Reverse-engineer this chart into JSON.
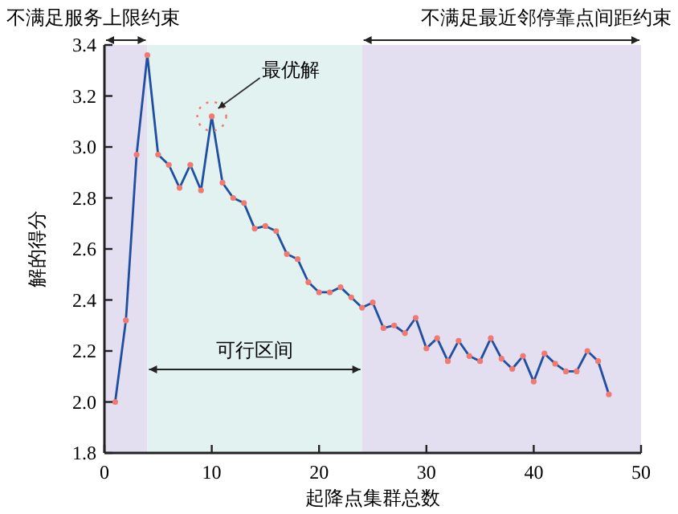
{
  "chart_data": {
    "type": "line",
    "xlabel": "起降点集群总数",
    "ylabel": "解的得分",
    "xlim": [
      0,
      50
    ],
    "ylim": [
      1.8,
      3.4
    ],
    "xticks": [
      0,
      10,
      20,
      30,
      40,
      50
    ],
    "yticks": [
      1.8,
      {
        "value": 2,
        "label": "2.0"
      },
      2.2,
      2.4,
      2.6,
      2.8,
      {
        "value": 3,
        "label": "3.0"
      },
      3.2,
      3.4
    ],
    "marker": "circle",
    "line_style": "solid",
    "series": [
      {
        "color": "#1f4fa0",
        "x": [
          1,
          2,
          3,
          4,
          5,
          6,
          7,
          8,
          9,
          10,
          11,
          12,
          13,
          14,
          15,
          16,
          17,
          18,
          19,
          20,
          21,
          22,
          23,
          24,
          25,
          26,
          27,
          28,
          29,
          30,
          31,
          32,
          33,
          34,
          35,
          36,
          37,
          38,
          39,
          40,
          41,
          42,
          43,
          44,
          45,
          46,
          47
        ],
        "values": [
          2.0,
          2.32,
          2.97,
          3.36,
          2.97,
          2.93,
          2.84,
          2.93,
          2.83,
          3.12,
          2.86,
          2.8,
          2.78,
          2.68,
          2.69,
          2.67,
          2.58,
          2.56,
          2.47,
          2.43,
          2.43,
          2.45,
          2.41,
          2.37,
          2.39,
          2.29,
          2.3,
          2.27,
          2.33,
          2.21,
          2.25,
          2.16,
          2.24,
          2.18,
          2.16,
          2.25,
          2.17,
          2.13,
          2.18,
          2.08,
          2.19,
          2.15,
          2.12,
          2.12,
          2.2,
          2.16,
          2.03
        ]
      }
    ],
    "bands": [
      {
        "axis": "x",
        "from": 0,
        "to": 4,
        "label": "不满足服务上限约束",
        "color": "#e3def0"
      },
      {
        "axis": "x",
        "from": 4,
        "to": 24,
        "label": "可行区间",
        "color": "#e2f2f0"
      },
      {
        "axis": "x",
        "from": 24,
        "to": 50,
        "label": "不满足最近邻停靠点间距约束",
        "color": "#e3def0"
      }
    ],
    "annotations": [
      {
        "text": "最优解",
        "x": 10,
        "y": 3.12
      }
    ]
  }
}
